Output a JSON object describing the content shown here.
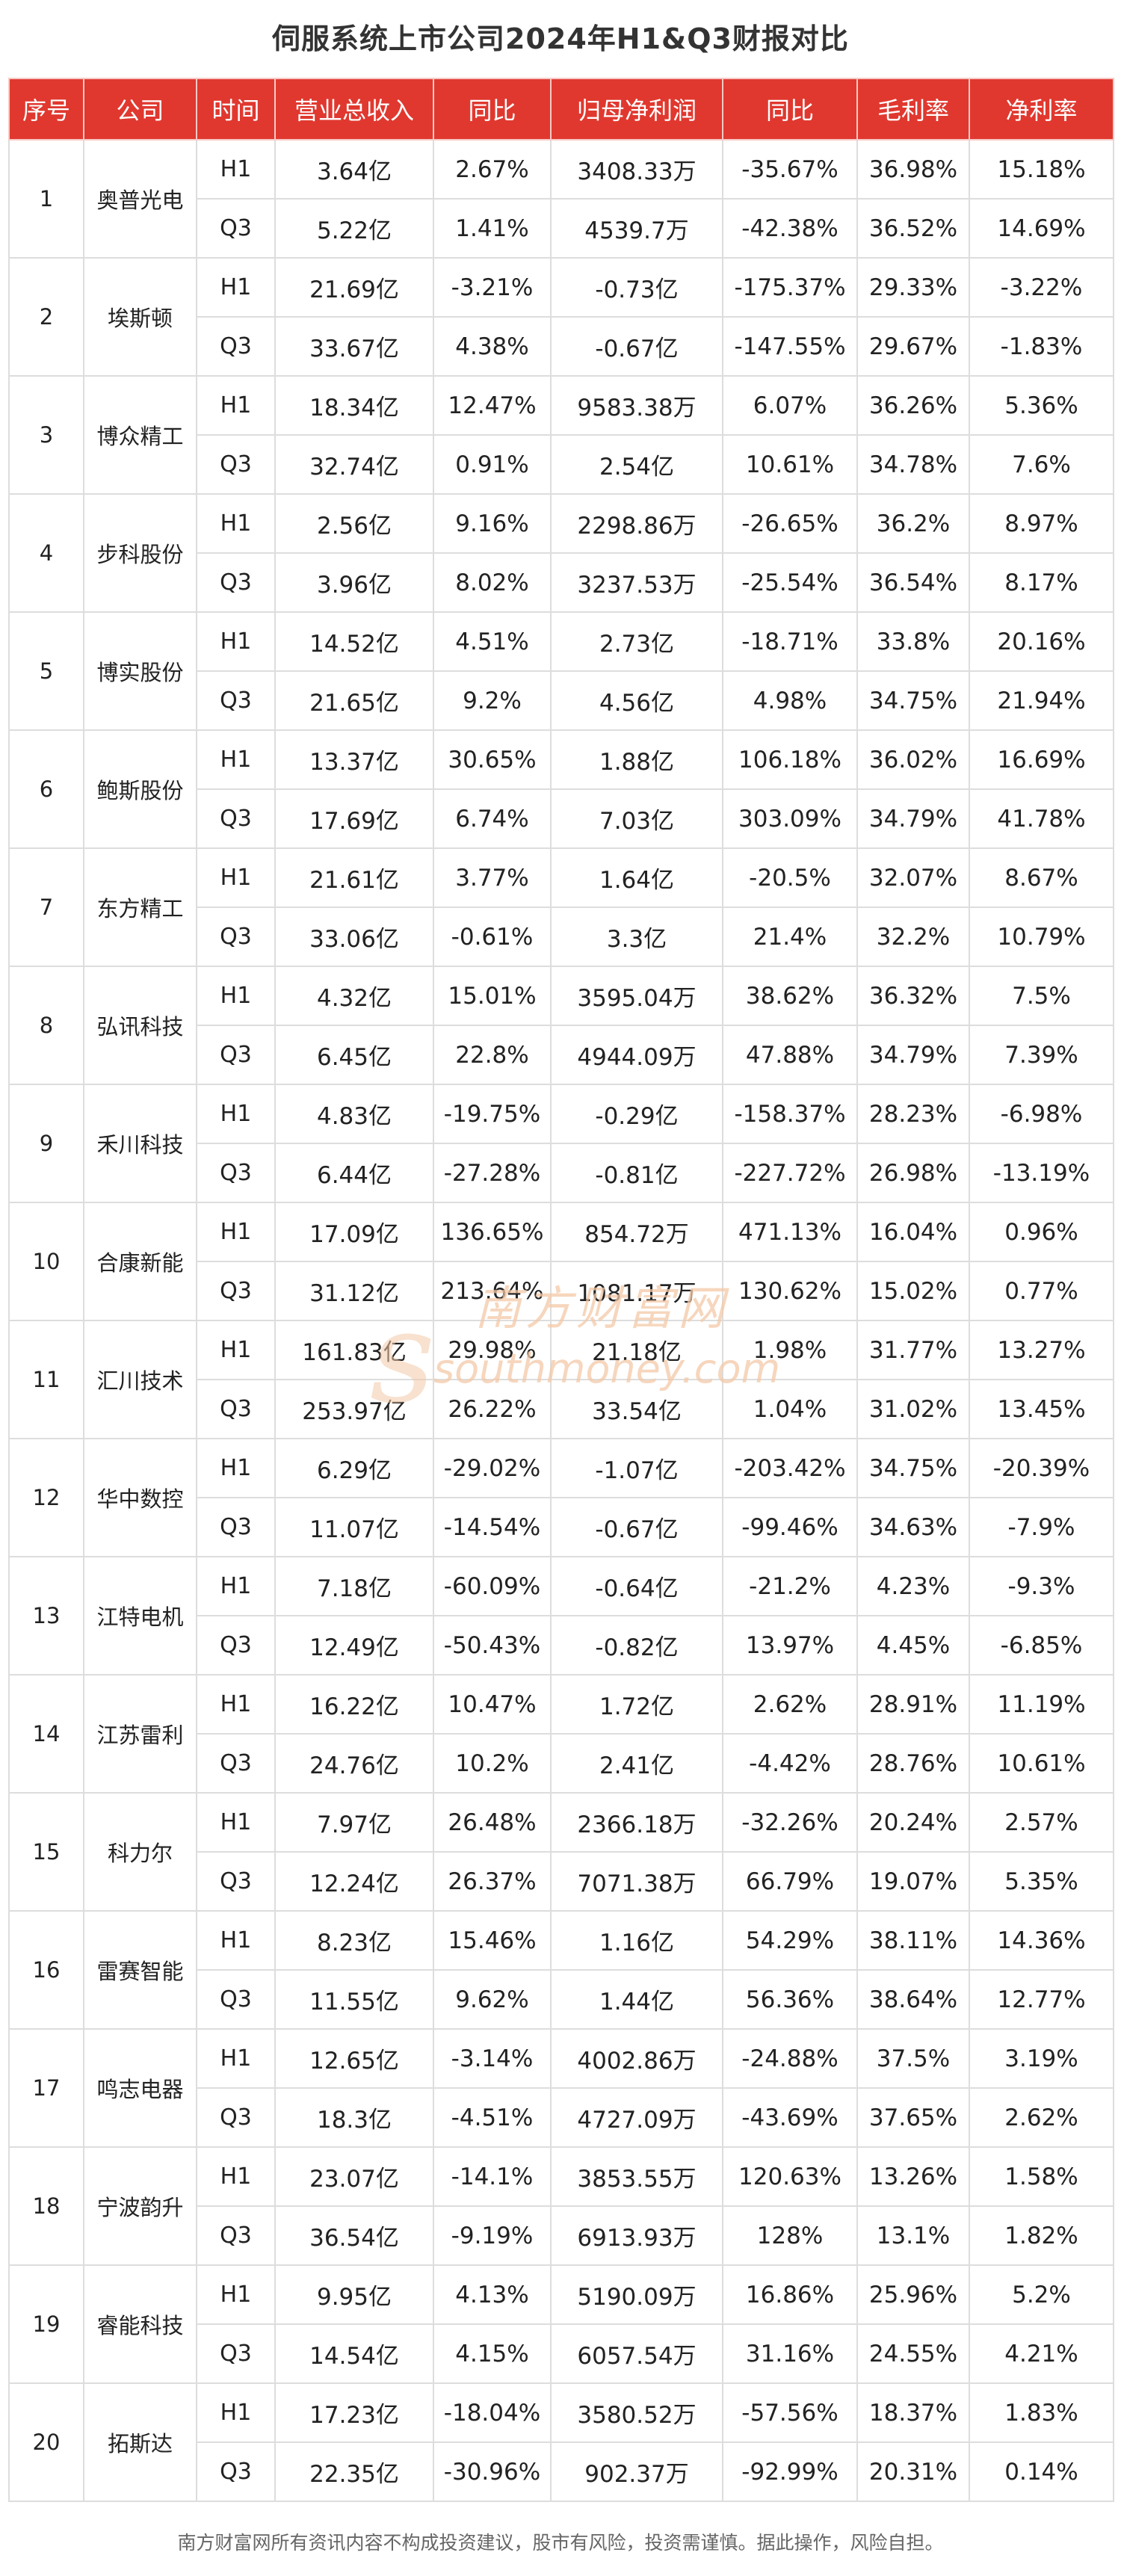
{
  "title": "伺服系统上市公司2024年H1&Q3财报对比",
  "headers": [
    "序号",
    "公司",
    "时间",
    "营业总收入",
    "同比",
    "归母净利润",
    "同比",
    "毛利率",
    "净利率"
  ],
  "rows": [
    {
      "rank": "1",
      "company": "奥普光电",
      "periods": [
        {
          "period": "H1",
          "revenue": "3.64亿",
          "revenue_yoy": "2.67%",
          "net_profit": "3408.33万",
          "net_profit_yoy": "-35.67%",
          "gross_margin": "36.98%",
          "net_margin": "15.18%"
        },
        {
          "period": "Q3",
          "revenue": "5.22亿",
          "revenue_yoy": "1.41%",
          "net_profit": "4539.7万",
          "net_profit_yoy": "-42.38%",
          "gross_margin": "36.52%",
          "net_margin": "14.69%"
        }
      ]
    },
    {
      "rank": "2",
      "company": "埃斯顿",
      "periods": [
        {
          "period": "H1",
          "revenue": "21.69亿",
          "revenue_yoy": "-3.21%",
          "net_profit": "-0.73亿",
          "net_profit_yoy": "-175.37%",
          "gross_margin": "29.33%",
          "net_margin": "-3.22%"
        },
        {
          "period": "Q3",
          "revenue": "33.67亿",
          "revenue_yoy": "4.38%",
          "net_profit": "-0.67亿",
          "net_profit_yoy": "-147.55%",
          "gross_margin": "29.67%",
          "net_margin": "-1.83%"
        }
      ]
    },
    {
      "rank": "3",
      "company": "博众精工",
      "periods": [
        {
          "period": "H1",
          "revenue": "18.34亿",
          "revenue_yoy": "12.47%",
          "net_profit": "9583.38万",
          "net_profit_yoy": "6.07%",
          "gross_margin": "36.26%",
          "net_margin": "5.36%"
        },
        {
          "period": "Q3",
          "revenue": "32.74亿",
          "revenue_yoy": "0.91%",
          "net_profit": "2.54亿",
          "net_profit_yoy": "10.61%",
          "gross_margin": "34.78%",
          "net_margin": "7.6%"
        }
      ]
    },
    {
      "rank": "4",
      "company": "步科股份",
      "periods": [
        {
          "period": "H1",
          "revenue": "2.56亿",
          "revenue_yoy": "9.16%",
          "net_profit": "2298.86万",
          "net_profit_yoy": "-26.65%",
          "gross_margin": "36.2%",
          "net_margin": "8.97%"
        },
        {
          "period": "Q3",
          "revenue": "3.96亿",
          "revenue_yoy": "8.02%",
          "net_profit": "3237.53万",
          "net_profit_yoy": "-25.54%",
          "gross_margin": "36.54%",
          "net_margin": "8.17%"
        }
      ]
    },
    {
      "rank": "5",
      "company": "博实股份",
      "periods": [
        {
          "period": "H1",
          "revenue": "14.52亿",
          "revenue_yoy": "4.51%",
          "net_profit": "2.73亿",
          "net_profit_yoy": "-18.71%",
          "gross_margin": "33.8%",
          "net_margin": "20.16%"
        },
        {
          "period": "Q3",
          "revenue": "21.65亿",
          "revenue_yoy": "9.2%",
          "net_profit": "4.56亿",
          "net_profit_yoy": "4.98%",
          "gross_margin": "34.75%",
          "net_margin": "21.94%"
        }
      ]
    },
    {
      "rank": "6",
      "company": "鲍斯股份",
      "periods": [
        {
          "period": "H1",
          "revenue": "13.37亿",
          "revenue_yoy": "30.65%",
          "net_profit": "1.88亿",
          "net_profit_yoy": "106.18%",
          "gross_margin": "36.02%",
          "net_margin": "16.69%"
        },
        {
          "period": "Q3",
          "revenue": "17.69亿",
          "revenue_yoy": "6.74%",
          "net_profit": "7.03亿",
          "net_profit_yoy": "303.09%",
          "gross_margin": "34.79%",
          "net_margin": "41.78%"
        }
      ]
    },
    {
      "rank": "7",
      "company": "东方精工",
      "periods": [
        {
          "period": "H1",
          "revenue": "21.61亿",
          "revenue_yoy": "3.77%",
          "net_profit": "1.64亿",
          "net_profit_yoy": "-20.5%",
          "gross_margin": "32.07%",
          "net_margin": "8.67%"
        },
        {
          "period": "Q3",
          "revenue": "33.06亿",
          "revenue_yoy": "-0.61%",
          "net_profit": "3.3亿",
          "net_profit_yoy": "21.4%",
          "gross_margin": "32.2%",
          "net_margin": "10.79%"
        }
      ]
    },
    {
      "rank": "8",
      "company": "弘讯科技",
      "periods": [
        {
          "period": "H1",
          "revenue": "4.32亿",
          "revenue_yoy": "15.01%",
          "net_profit": "3595.04万",
          "net_profit_yoy": "38.62%",
          "gross_margin": "36.32%",
          "net_margin": "7.5%"
        },
        {
          "period": "Q3",
          "revenue": "6.45亿",
          "revenue_yoy": "22.8%",
          "net_profit": "4944.09万",
          "net_profit_yoy": "47.88%",
          "gross_margin": "34.79%",
          "net_margin": "7.39%"
        }
      ]
    },
    {
      "rank": "9",
      "company": "禾川科技",
      "periods": [
        {
          "period": "H1",
          "revenue": "4.83亿",
          "revenue_yoy": "-19.75%",
          "net_profit": "-0.29亿",
          "net_profit_yoy": "-158.37%",
          "gross_margin": "28.23%",
          "net_margin": "-6.98%"
        },
        {
          "period": "Q3",
          "revenue": "6.44亿",
          "revenue_yoy": "-27.28%",
          "net_profit": "-0.81亿",
          "net_profit_yoy": "-227.72%",
          "gross_margin": "26.98%",
          "net_margin": "-13.19%"
        }
      ]
    },
    {
      "rank": "10",
      "company": "合康新能",
      "periods": [
        {
          "period": "H1",
          "revenue": "17.09亿",
          "revenue_yoy": "136.65%",
          "net_profit": "854.72万",
          "net_profit_yoy": "471.13%",
          "gross_margin": "16.04%",
          "net_margin": "0.96%"
        },
        {
          "period": "Q3",
          "revenue": "31.12亿",
          "revenue_yoy": "213.64%",
          "net_profit": "1081.17万",
          "net_profit_yoy": "130.62%",
          "gross_margin": "15.02%",
          "net_margin": "0.77%"
        }
      ]
    },
    {
      "rank": "11",
      "company": "汇川技术",
      "periods": [
        {
          "period": "H1",
          "revenue": "161.83亿",
          "revenue_yoy": "29.98%",
          "net_profit": "21.18亿",
          "net_profit_yoy": "1.98%",
          "gross_margin": "31.77%",
          "net_margin": "13.27%"
        },
        {
          "period": "Q3",
          "revenue": "253.97亿",
          "revenue_yoy": "26.22%",
          "net_profit": "33.54亿",
          "net_profit_yoy": "1.04%",
          "gross_margin": "31.02%",
          "net_margin": "13.45%"
        }
      ]
    },
    {
      "rank": "12",
      "company": "华中数控",
      "periods": [
        {
          "period": "H1",
          "revenue": "6.29亿",
          "revenue_yoy": "-29.02%",
          "net_profit": "-1.07亿",
          "net_profit_yoy": "-203.42%",
          "gross_margin": "34.75%",
          "net_margin": "-20.39%"
        },
        {
          "period": "Q3",
          "revenue": "11.07亿",
          "revenue_yoy": "-14.54%",
          "net_profit": "-0.67亿",
          "net_profit_yoy": "-99.46%",
          "gross_margin": "34.63%",
          "net_margin": "-7.9%"
        }
      ]
    },
    {
      "rank": "13",
      "company": "江特电机",
      "periods": [
        {
          "period": "H1",
          "revenue": "7.18亿",
          "revenue_yoy": "-60.09%",
          "net_profit": "-0.64亿",
          "net_profit_yoy": "-21.2%",
          "gross_margin": "4.23%",
          "net_margin": "-9.3%"
        },
        {
          "period": "Q3",
          "revenue": "12.49亿",
          "revenue_yoy": "-50.43%",
          "net_profit": "-0.82亿",
          "net_profit_yoy": "13.97%",
          "gross_margin": "4.45%",
          "net_margin": "-6.85%"
        }
      ]
    },
    {
      "rank": "14",
      "company": "江苏雷利",
      "periods": [
        {
          "period": "H1",
          "revenue": "16.22亿",
          "revenue_yoy": "10.47%",
          "net_profit": "1.72亿",
          "net_profit_yoy": "2.62%",
          "gross_margin": "28.91%",
          "net_margin": "11.19%"
        },
        {
          "period": "Q3",
          "revenue": "24.76亿",
          "revenue_yoy": "10.2%",
          "net_profit": "2.41亿",
          "net_profit_yoy": "-4.42%",
          "gross_margin": "28.76%",
          "net_margin": "10.61%"
        }
      ]
    },
    {
      "rank": "15",
      "company": "科力尔",
      "periods": [
        {
          "period": "H1",
          "revenue": "7.97亿",
          "revenue_yoy": "26.48%",
          "net_profit": "2366.18万",
          "net_profit_yoy": "-32.26%",
          "gross_margin": "20.24%",
          "net_margin": "2.57%"
        },
        {
          "period": "Q3",
          "revenue": "12.24亿",
          "revenue_yoy": "26.37%",
          "net_profit": "7071.38万",
          "net_profit_yoy": "66.79%",
          "gross_margin": "19.07%",
          "net_margin": "5.35%"
        }
      ]
    },
    {
      "rank": "16",
      "company": "雷赛智能",
      "periods": [
        {
          "period": "H1",
          "revenue": "8.23亿",
          "revenue_yoy": "15.46%",
          "net_profit": "1.16亿",
          "net_profit_yoy": "54.29%",
          "gross_margin": "38.11%",
          "net_margin": "14.36%"
        },
        {
          "period": "Q3",
          "revenue": "11.55亿",
          "revenue_yoy": "9.62%",
          "net_profit": "1.44亿",
          "net_profit_yoy": "56.36%",
          "gross_margin": "38.64%",
          "net_margin": "12.77%"
        }
      ]
    },
    {
      "rank": "17",
      "company": "鸣志电器",
      "periods": [
        {
          "period": "H1",
          "revenue": "12.65亿",
          "revenue_yoy": "-3.14%",
          "net_profit": "4002.86万",
          "net_profit_yoy": "-24.88%",
          "gross_margin": "37.5%",
          "net_margin": "3.19%"
        },
        {
          "period": "Q3",
          "revenue": "18.3亿",
          "revenue_yoy": "-4.51%",
          "net_profit": "4727.09万",
          "net_profit_yoy": "-43.69%",
          "gross_margin": "37.65%",
          "net_margin": "2.62%"
        }
      ]
    },
    {
      "rank": "18",
      "company": "宁波韵升",
      "periods": [
        {
          "period": "H1",
          "revenue": "23.07亿",
          "revenue_yoy": "-14.1%",
          "net_profit": "3853.55万",
          "net_profit_yoy": "120.63%",
          "gross_margin": "13.26%",
          "net_margin": "1.58%"
        },
        {
          "period": "Q3",
          "revenue": "36.54亿",
          "revenue_yoy": "-9.19%",
          "net_profit": "6913.93万",
          "net_profit_yoy": "128%",
          "gross_margin": "13.1%",
          "net_margin": "1.82%"
        }
      ]
    },
    {
      "rank": "19",
      "company": "睿能科技",
      "periods": [
        {
          "period": "H1",
          "revenue": "9.95亿",
          "revenue_yoy": "4.13%",
          "net_profit": "5190.09万",
          "net_profit_yoy": "16.86%",
          "gross_margin": "25.96%",
          "net_margin": "5.2%"
        },
        {
          "period": "Q3",
          "revenue": "14.54亿",
          "revenue_yoy": "4.15%",
          "net_profit": "6057.54万",
          "net_profit_yoy": "31.16%",
          "gross_margin": "24.55%",
          "net_margin": "4.21%"
        }
      ]
    },
    {
      "rank": "20",
      "company": "拓斯达",
      "periods": [
        {
          "period": "H1",
          "revenue": "17.23亿",
          "revenue_yoy": "-18.04%",
          "net_profit": "3580.52万",
          "net_profit_yoy": "-57.56%",
          "gross_margin": "18.37%",
          "net_margin": "1.83%"
        },
        {
          "period": "Q3",
          "revenue": "22.35亿",
          "revenue_yoy": "-30.96%",
          "net_profit": "902.37万",
          "net_profit_yoy": "-92.99%",
          "gross_margin": "20.31%",
          "net_margin": "0.14%"
        }
      ]
    }
  ],
  "watermark": {
    "cn": "南方财富网",
    "en": "southmoney.com",
    "color": "#f3c9a8"
  },
  "footer": "南方财富网所有资讯内容不构成投资建议，股市有风险，投资需谨慎。据此操作，风险自担。",
  "colors": {
    "header_bg": "#e0382f",
    "header_text": "#ffffff",
    "border": "#dddddd"
  }
}
